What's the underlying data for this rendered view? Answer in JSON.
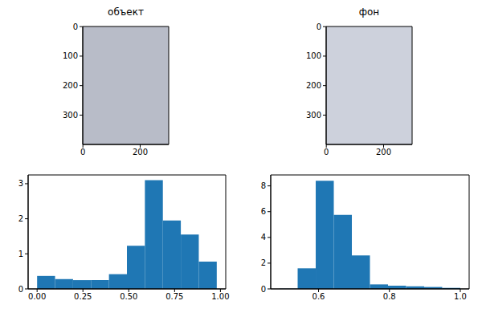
{
  "chart_data": [
    {
      "type": "image",
      "title": "объект",
      "color": "#b8bcc8",
      "xlim": [
        -0.5,
        299.5
      ],
      "ylim": [
        399.5,
        -0.5
      ],
      "xticks": [
        0,
        200
      ],
      "yticks": [
        0,
        100,
        200,
        300
      ]
    },
    {
      "type": "image",
      "title": "фон",
      "color": "#cdd1dc",
      "xlim": [
        -0.5,
        299.5
      ],
      "ylim": [
        399.5,
        -0.5
      ],
      "xticks": [
        0,
        200
      ],
      "yticks": [
        0,
        100,
        200,
        300
      ]
    },
    {
      "type": "histogram",
      "color": "#1f77b4",
      "bins": [
        0,
        0.098,
        0.196,
        0.294,
        0.392,
        0.49,
        0.588,
        0.686,
        0.784,
        0.882,
        0.98
      ],
      "values": [
        0.37,
        0.28,
        0.25,
        0.25,
        0.42,
        1.23,
        3.1,
        1.95,
        1.55,
        0.78
      ],
      "xlim": [
        -0.049,
        1.029
      ],
      "ylim": [
        0,
        3.25
      ],
      "xticks": [
        {
          "value": 0,
          "label": "0.00"
        },
        {
          "value": 0.25,
          "label": "0.25"
        },
        {
          "value": 0.5,
          "label": "0.50"
        },
        {
          "value": 0.75,
          "label": "0.75"
        },
        {
          "value": 1,
          "label": "1.00"
        }
      ],
      "yticks": [
        0,
        1,
        2,
        3
      ]
    },
    {
      "type": "histogram",
      "color": "#1f77b4",
      "bins": [
        0.49,
        0.541,
        0.592,
        0.643,
        0.694,
        0.745,
        0.796,
        0.847,
        0.898,
        0.949,
        1.0
      ],
      "values": [
        0.02,
        1.6,
        8.4,
        5.75,
        2.6,
        0.35,
        0.25,
        0.2,
        0.15,
        0.08
      ],
      "xlim": [
        0.465,
        1.025
      ],
      "ylim": [
        0,
        8.85
      ],
      "xticks": [
        0.6,
        0.8,
        {
          "value": 1,
          "label": "1.0"
        }
      ],
      "yticks": [
        0,
        2,
        4,
        6,
        8
      ]
    }
  ]
}
